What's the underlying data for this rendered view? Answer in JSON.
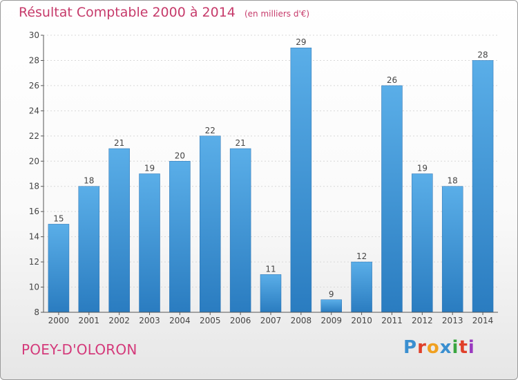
{
  "title": "Résultat Comptable 2000 à 2014",
  "unit": "(en milliers d'€)",
  "commune": "POEY-D'OLORON",
  "brand": {
    "name": "Proxiti",
    "colors": [
      "#3a8fd0",
      "#e0402a",
      "#f0a020",
      "#3a8fd0",
      "#3aa640",
      "#e0402a",
      "#9a3ac0"
    ]
  },
  "chart_data": {
    "type": "bar",
    "title": "Résultat Comptable 2000 à 2014",
    "ylabel": "(en milliers d'€)",
    "xlabel": "",
    "ylim": [
      8,
      30
    ],
    "yticks": [
      8,
      10,
      12,
      14,
      16,
      18,
      20,
      22,
      24,
      26,
      28,
      30
    ],
    "grid": true,
    "categories": [
      "2000",
      "2001",
      "2002",
      "2003",
      "2004",
      "2005",
      "2006",
      "2007",
      "2008",
      "2009",
      "2010",
      "2011",
      "2012",
      "2013",
      "2014"
    ],
    "values": [
      15,
      18,
      21,
      19,
      20,
      22,
      21,
      11,
      29,
      9,
      12,
      26,
      19,
      18,
      28
    ],
    "bar_color": "#4a9ed8"
  }
}
